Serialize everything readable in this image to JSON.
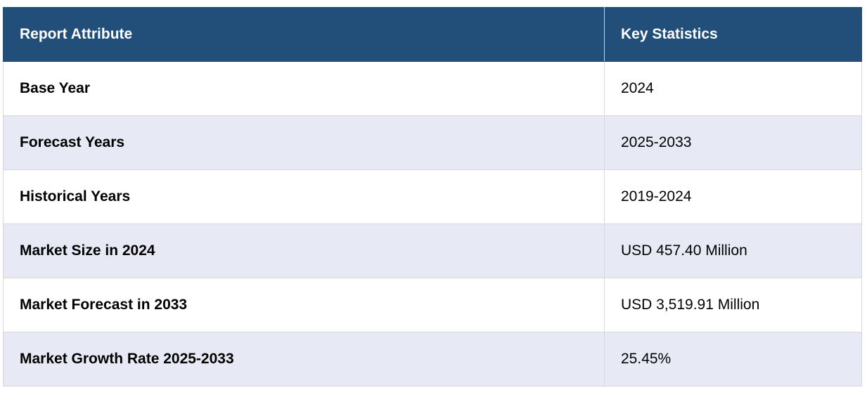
{
  "table": {
    "header": [
      "Report Attribute",
      "Key Statistics"
    ],
    "rows": [
      [
        "Base Year",
        "2024"
      ],
      [
        "Forecast Years",
        "2025-2033"
      ],
      [
        "Historical Years",
        "2019-2024"
      ],
      [
        "Market Size in 2024",
        "USD 457.40 Million"
      ],
      [
        "Market Forecast in 2033",
        "USD 3,519.91 Million"
      ],
      [
        "Market Growth Rate 2025-2033",
        "25.45%"
      ]
    ]
  }
}
